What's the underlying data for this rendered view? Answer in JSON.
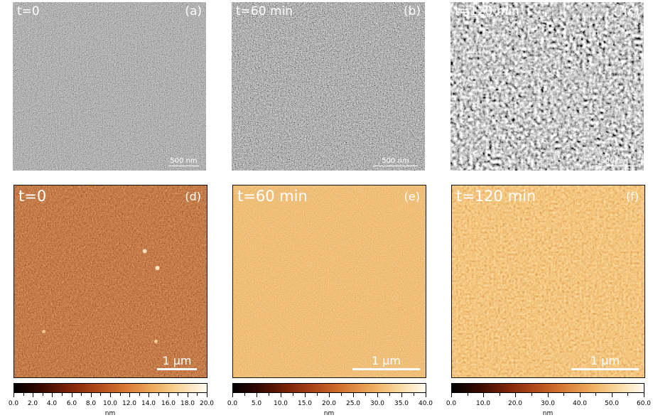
{
  "sem_panels": [
    {
      "time": "t=0",
      "letter": "(a)",
      "scale_label": "500 nm",
      "level": 0.0
    },
    {
      "time": "t=60 min",
      "letter": "(b)",
      "scale_label": "500 nm",
      "level": 0.5
    },
    {
      "time": "t=120 min",
      "letter": "(c)",
      "scale_label": "500 nm",
      "level": 1.0
    }
  ],
  "afm_panels": [
    {
      "time": "t=0",
      "letter": "(d)",
      "scale_label": "1 μm",
      "colorbar_ticks": [
        "0.0",
        "2.0",
        "4.0",
        "6.0",
        "8.0",
        "10.0",
        "12.0",
        "14.0",
        "16.0",
        "18.0",
        "20.0"
      ],
      "colorbar_unit": "nm"
    },
    {
      "time": "t=60 min",
      "letter": "(e)",
      "scale_label": "1 μm",
      "colorbar_ticks": [
        "0.0",
        "5.0",
        "10.0",
        "15.0",
        "20.0",
        "25.0",
        "30.0",
        "35.0",
        "40.0"
      ],
      "colorbar_unit": "nm"
    },
    {
      "time": "t=120 min",
      "letter": "(f)",
      "scale_label": "1 μm",
      "colorbar_ticks": [
        "0.0",
        "10.0",
        "20.0",
        "30.0",
        "40.0",
        "50.0",
        "60.0"
      ],
      "colorbar_unit": "nm"
    }
  ],
  "colormap": [
    "#000000",
    "#3a0a02",
    "#7c2409",
    "#b0481a",
    "#d57632",
    "#eda95a",
    "#f8d79c",
    "#fffaf0"
  ]
}
